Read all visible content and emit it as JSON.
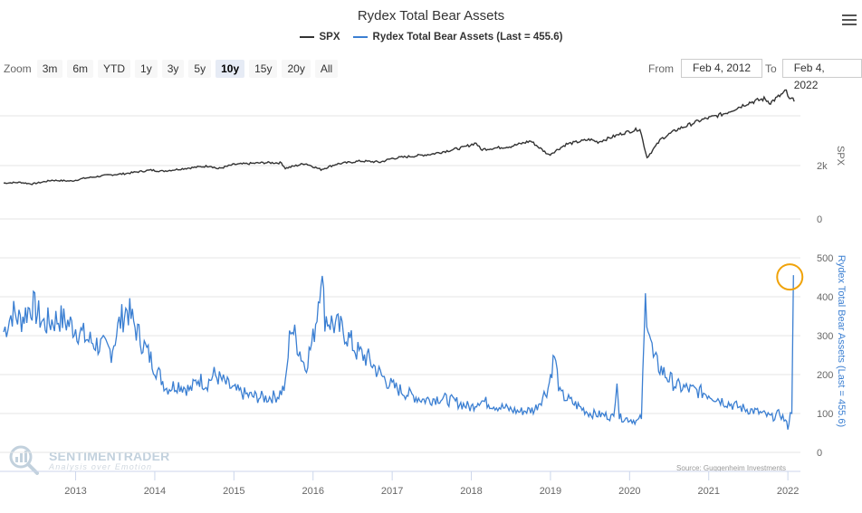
{
  "title": "Rydex Total Bear Assets",
  "legend": [
    {
      "name": "SPX",
      "color": "#333333"
    },
    {
      "name": "Rydex Total Bear Assets (Last = 455.6)",
      "color": "#3b7fd2"
    }
  ],
  "zoom": {
    "label": "Zoom",
    "buttons": [
      "3m",
      "6m",
      "YTD",
      "1y",
      "3y",
      "5y",
      "10y",
      "15y",
      "20y",
      "All"
    ],
    "active": "10y"
  },
  "range": {
    "from_label": "From",
    "from_value": "Feb 4, 2012",
    "to_label": "To",
    "to_value": "Feb 4, 2022"
  },
  "credits": "Source: Guggenheim Investments",
  "logo": {
    "name": "SENTIMENTRADER",
    "tagline": "Analysis over Emotion"
  },
  "colors": {
    "spx": "#333333",
    "bear": "#3b7fd2",
    "highlight": "#f0a30a",
    "grid": "#e6e6e6"
  },
  "chart_data": [
    {
      "type": "line",
      "title": "Rydex Total Bear Assets",
      "name": "SPX",
      "ylabel": "SPX",
      "ytick_labels": [
        "0",
        "2k"
      ],
      "ylim": [
        0,
        5000
      ],
      "x_tick_labels": [
        "2013",
        "2014",
        "2015",
        "2016",
        "2017",
        "2018",
        "2019",
        "2020",
        "2021",
        "2022"
      ],
      "points": [
        [
          2012.09,
          1345
        ],
        [
          2012.3,
          1370
        ],
        [
          2012.45,
          1310
        ],
        [
          2012.7,
          1450
        ],
        [
          2012.95,
          1420
        ],
        [
          2013.1,
          1520
        ],
        [
          2013.4,
          1640
        ],
        [
          2013.6,
          1690
        ],
        [
          2013.95,
          1830
        ],
        [
          2014.1,
          1790
        ],
        [
          2014.4,
          1900
        ],
        [
          2014.7,
          1990
        ],
        [
          2014.8,
          1880
        ],
        [
          2015.0,
          2040
        ],
        [
          2015.4,
          2110
        ],
        [
          2015.6,
          2100
        ],
        [
          2015.65,
          1900
        ],
        [
          2015.9,
          2080
        ],
        [
          2016.1,
          1850
        ],
        [
          2016.3,
          2060
        ],
        [
          2016.6,
          2170
        ],
        [
          2016.85,
          2130
        ],
        [
          2017.0,
          2270
        ],
        [
          2017.5,
          2430
        ],
        [
          2017.9,
          2680
        ],
        [
          2018.06,
          2850
        ],
        [
          2018.12,
          2600
        ],
        [
          2018.5,
          2720
        ],
        [
          2018.75,
          2920
        ],
        [
          2018.98,
          2400
        ],
        [
          2019.2,
          2800
        ],
        [
          2019.5,
          2980
        ],
        [
          2019.6,
          2880
        ],
        [
          2019.9,
          3200
        ],
        [
          2020.13,
          3380
        ],
        [
          2020.22,
          2300
        ],
        [
          2020.4,
          3000
        ],
        [
          2020.6,
          3350
        ],
        [
          2020.9,
          3700
        ],
        [
          2021.2,
          3950
        ],
        [
          2021.5,
          4350
        ],
        [
          2021.7,
          4500
        ],
        [
          2021.78,
          4360
        ],
        [
          2021.98,
          4790
        ],
        [
          2022.02,
          4450
        ],
        [
          2022.05,
          4500
        ],
        [
          2022.08,
          4400
        ]
      ]
    },
    {
      "type": "line",
      "name": "Rydex Total Bear Assets (Last = 455.6)",
      "ylabel": "Rydex Total Bear Assets (Last = 455.6)",
      "ylim": [
        0,
        500
      ],
      "yticks": [
        0,
        100,
        200,
        300,
        400,
        500
      ],
      "last_value": 455.6,
      "points": [
        [
          2012.09,
          310
        ],
        [
          2012.2,
          360
        ],
        [
          2012.3,
          340
        ],
        [
          2012.45,
          380
        ],
        [
          2012.6,
          330
        ],
        [
          2012.8,
          345
        ],
        [
          2013.0,
          320
        ],
        [
          2013.15,
          290
        ],
        [
          2013.3,
          275
        ],
        [
          2013.45,
          260
        ],
        [
          2013.55,
          330
        ],
        [
          2013.65,
          370
        ],
        [
          2013.8,
          300
        ],
        [
          2014.0,
          220
        ],
        [
          2014.15,
          165
        ],
        [
          2014.3,
          175
        ],
        [
          2014.45,
          160
        ],
        [
          2014.55,
          190
        ],
        [
          2014.65,
          175
        ],
        [
          2014.75,
          200
        ],
        [
          2014.85,
          185
        ],
        [
          2015.0,
          160
        ],
        [
          2015.2,
          145
        ],
        [
          2015.4,
          140
        ],
        [
          2015.55,
          145
        ],
        [
          2015.65,
          170
        ],
        [
          2015.72,
          330
        ],
        [
          2015.8,
          280
        ],
        [
          2015.9,
          220
        ],
        [
          2016.0,
          290
        ],
        [
          2016.05,
          360
        ],
        [
          2016.1,
          470
        ],
        [
          2016.15,
          350
        ],
        [
          2016.25,
          330
        ],
        [
          2016.4,
          310
        ],
        [
          2016.55,
          260
        ],
        [
          2016.7,
          240
        ],
        [
          2016.85,
          200
        ],
        [
          2017.0,
          170
        ],
        [
          2017.2,
          150
        ],
        [
          2017.4,
          135
        ],
        [
          2017.6,
          140
        ],
        [
          2017.8,
          130
        ],
        [
          2018.0,
          115
        ],
        [
          2018.1,
          135
        ],
        [
          2018.3,
          120
        ],
        [
          2018.6,
          105
        ],
        [
          2018.8,
          110
        ],
        [
          2018.97,
          165
        ],
        [
          2019.05,
          250
        ],
        [
          2019.12,
          150
        ],
        [
          2019.3,
          125
        ],
        [
          2019.5,
          100
        ],
        [
          2019.7,
          95
        ],
        [
          2019.8,
          90
        ],
        [
          2019.84,
          200
        ],
        [
          2019.87,
          90
        ],
        [
          2020.0,
          85
        ],
        [
          2020.1,
          80
        ],
        [
          2020.15,
          90
        ],
        [
          2020.2,
          390
        ],
        [
          2020.3,
          240
        ],
        [
          2020.45,
          200
        ],
        [
          2020.6,
          170
        ],
        [
          2020.8,
          160
        ],
        [
          2021.0,
          150
        ],
        [
          2021.2,
          130
        ],
        [
          2021.4,
          115
        ],
        [
          2021.6,
          105
        ],
        [
          2021.8,
          90
        ],
        [
          2021.9,
          100
        ],
        [
          2021.97,
          80
        ],
        [
          2022.0,
          65
        ],
        [
          2022.03,
          95
        ],
        [
          2022.05,
          110
        ],
        [
          2022.07,
          455.6
        ]
      ]
    }
  ]
}
